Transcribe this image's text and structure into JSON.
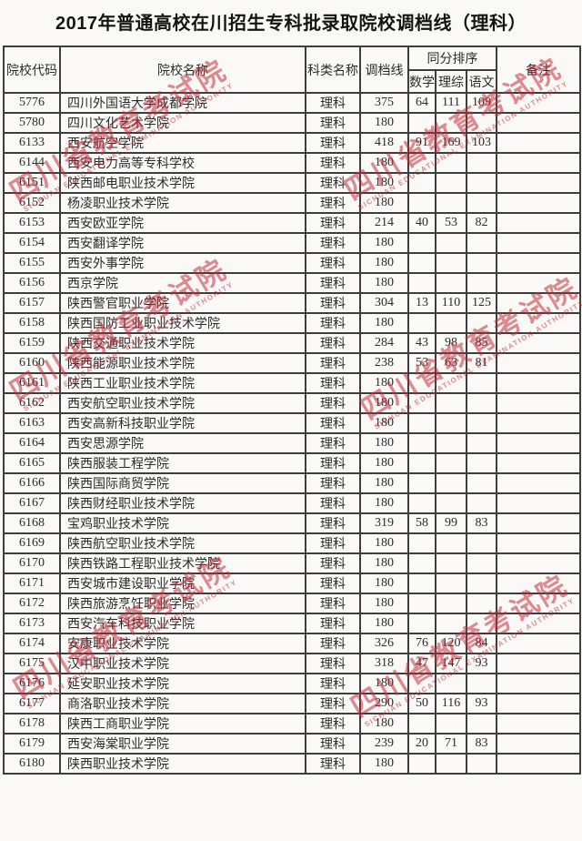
{
  "title": "2017年普通高校在川招生专科批录取院校调档线（理科）",
  "colors": {
    "watermark_red": "#c32d3a",
    "border": "#3d3d3d",
    "background": "#faf9f7",
    "text": "#2b2b2b"
  },
  "watermark": {
    "cn": "四川省教育考试院",
    "en": "SICHUAN EDUCATIONAL EXAMINATION AUTHORITY"
  },
  "table": {
    "headers": {
      "code": "院校代码",
      "name": "院校名称",
      "category": "科类名称",
      "cutoff": "调档线",
      "tiebreak": "同分排序",
      "math": "数学",
      "science": "理综",
      "chinese": "语文",
      "remark": "备注"
    },
    "rows": [
      {
        "code": "5776",
        "name": "四川外国语大学成都学院",
        "category": "理科",
        "cutoff": "375",
        "math": "64",
        "science": "111",
        "chinese": "109",
        "remark": ""
      },
      {
        "code": "5780",
        "name": "四川文化艺术学院",
        "category": "理科",
        "cutoff": "180",
        "math": "",
        "science": "",
        "chinese": "",
        "remark": ""
      },
      {
        "code": "6133",
        "name": "西安航空学院",
        "category": "理科",
        "cutoff": "418",
        "math": "91",
        "science": "169",
        "chinese": "103",
        "remark": ""
      },
      {
        "code": "6144",
        "name": "西安电力高等专科学校",
        "category": "理科",
        "cutoff": "180",
        "math": "",
        "science": "",
        "chinese": "",
        "remark": ""
      },
      {
        "code": "6151",
        "name": "陕西邮电职业技术学院",
        "category": "理科",
        "cutoff": "180",
        "math": "",
        "science": "",
        "chinese": "",
        "remark": ""
      },
      {
        "code": "6152",
        "name": "杨凌职业技术学院",
        "category": "理科",
        "cutoff": "180",
        "math": "",
        "science": "",
        "chinese": "",
        "remark": ""
      },
      {
        "code": "6153",
        "name": "西安欧亚学院",
        "category": "理科",
        "cutoff": "214",
        "math": "40",
        "science": "53",
        "chinese": "82",
        "remark": ""
      },
      {
        "code": "6154",
        "name": "西安翻译学院",
        "category": "理科",
        "cutoff": "180",
        "math": "",
        "science": "",
        "chinese": "",
        "remark": ""
      },
      {
        "code": "6155",
        "name": "西安外事学院",
        "category": "理科",
        "cutoff": "180",
        "math": "",
        "science": "",
        "chinese": "",
        "remark": ""
      },
      {
        "code": "6156",
        "name": "西京学院",
        "category": "理科",
        "cutoff": "180",
        "math": "",
        "science": "",
        "chinese": "",
        "remark": ""
      },
      {
        "code": "6157",
        "name": "陕西警官职业学院",
        "category": "理科",
        "cutoff": "304",
        "math": "13",
        "science": "110",
        "chinese": "125",
        "remark": ""
      },
      {
        "code": "6158",
        "name": "陕西国防工业职业技术学院",
        "category": "理科",
        "cutoff": "180",
        "math": "",
        "science": "",
        "chinese": "",
        "remark": ""
      },
      {
        "code": "6159",
        "name": "陕西交通职业技术学院",
        "category": "理科",
        "cutoff": "284",
        "math": "43",
        "science": "98",
        "chinese": "85",
        "remark": ""
      },
      {
        "code": "6160",
        "name": "陕西能源职业技术学院",
        "category": "理科",
        "cutoff": "238",
        "math": "53",
        "science": "63",
        "chinese": "81",
        "remark": ""
      },
      {
        "code": "6161",
        "name": "陕西工业职业技术学院",
        "category": "理科",
        "cutoff": "180",
        "math": "",
        "science": "",
        "chinese": "",
        "remark": ""
      },
      {
        "code": "6162",
        "name": "西安航空职业技术学院",
        "category": "理科",
        "cutoff": "180",
        "math": "",
        "science": "",
        "chinese": "",
        "remark": ""
      },
      {
        "code": "6163",
        "name": "西安高新科技职业学院",
        "category": "理科",
        "cutoff": "180",
        "math": "",
        "science": "",
        "chinese": "",
        "remark": ""
      },
      {
        "code": "6164",
        "name": "西安思源学院",
        "category": "理科",
        "cutoff": "180",
        "math": "",
        "science": "",
        "chinese": "",
        "remark": ""
      },
      {
        "code": "6165",
        "name": "陕西服装工程学院",
        "category": "理科",
        "cutoff": "180",
        "math": "",
        "science": "",
        "chinese": "",
        "remark": ""
      },
      {
        "code": "6166",
        "name": "陕西国际商贸学院",
        "category": "理科",
        "cutoff": "180",
        "math": "",
        "science": "",
        "chinese": "",
        "remark": ""
      },
      {
        "code": "6167",
        "name": "陕西财经职业技术学院",
        "category": "理科",
        "cutoff": "180",
        "math": "",
        "science": "",
        "chinese": "",
        "remark": ""
      },
      {
        "code": "6168",
        "name": "宝鸡职业技术学院",
        "category": "理科",
        "cutoff": "319",
        "math": "58",
        "science": "99",
        "chinese": "83",
        "remark": ""
      },
      {
        "code": "6169",
        "name": "陕西航空职业技术学院",
        "category": "理科",
        "cutoff": "180",
        "math": "",
        "science": "",
        "chinese": "",
        "remark": ""
      },
      {
        "code": "6170",
        "name": "陕西铁路工程职业技术学院",
        "category": "理科",
        "cutoff": "180",
        "math": "",
        "science": "",
        "chinese": "",
        "remark": ""
      },
      {
        "code": "6171",
        "name": "西安城市建设职业学院",
        "category": "理科",
        "cutoff": "180",
        "math": "",
        "science": "",
        "chinese": "",
        "remark": ""
      },
      {
        "code": "6172",
        "name": "陕西旅游烹饪职业学院",
        "category": "理科",
        "cutoff": "180",
        "math": "",
        "science": "",
        "chinese": "",
        "remark": ""
      },
      {
        "code": "6173",
        "name": "西安汽车科技职业学院",
        "category": "理科",
        "cutoff": "180",
        "math": "",
        "science": "",
        "chinese": "",
        "remark": ""
      },
      {
        "code": "6174",
        "name": "安康职业技术学院",
        "category": "理科",
        "cutoff": "326",
        "math": "76",
        "science": "120",
        "chinese": "84",
        "remark": ""
      },
      {
        "code": "6175",
        "name": "汉中职业技术学院",
        "category": "理科",
        "cutoff": "318",
        "math": "47",
        "science": "147",
        "chinese": "93",
        "remark": ""
      },
      {
        "code": "6176",
        "name": "延安职业技术学院",
        "category": "理科",
        "cutoff": "180",
        "math": "",
        "science": "",
        "chinese": "",
        "remark": ""
      },
      {
        "code": "6177",
        "name": "商洛职业技术学院",
        "category": "理科",
        "cutoff": "290",
        "math": "50",
        "science": "116",
        "chinese": "93",
        "remark": ""
      },
      {
        "code": "6178",
        "name": "陕西工商职业学院",
        "category": "理科",
        "cutoff": "180",
        "math": "",
        "science": "",
        "chinese": "",
        "remark": ""
      },
      {
        "code": "6179",
        "name": "西安海棠职业学院",
        "category": "理科",
        "cutoff": "239",
        "math": "20",
        "science": "71",
        "chinese": "83",
        "remark": ""
      },
      {
        "code": "6180",
        "name": "陕西职业技术学院",
        "category": "理科",
        "cutoff": "180",
        "math": "",
        "science": "",
        "chinese": "",
        "remark": ""
      }
    ]
  }
}
